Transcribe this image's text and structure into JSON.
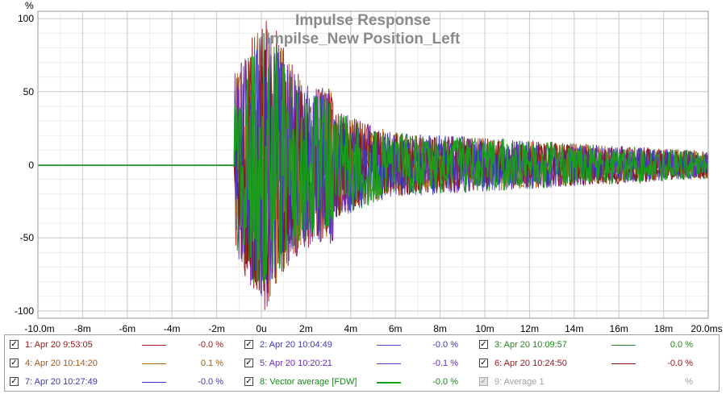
{
  "chart_data": {
    "type": "line",
    "title": "Impulse Response",
    "subtitle": "Impilse_New Position_Left",
    "y_unit_label": "%",
    "x_unit_label": "ms",
    "xlim": [
      -10,
      20
    ],
    "ylim": [
      -105,
      105
    ],
    "x_ticks": [
      -10,
      -8,
      -6,
      -4,
      -2,
      0,
      2,
      4,
      6,
      8,
      10,
      12,
      14,
      16,
      18,
      20
    ],
    "x_tick_labels": [
      "-10.0m",
      "-8m",
      "-6m",
      "-4m",
      "-2m",
      "0u",
      "2m",
      "4m",
      "6m",
      "8m",
      "10m",
      "12m",
      "14m",
      "16m",
      "18m",
      "20.0ms"
    ],
    "y_ticks": [
      100,
      50,
      0,
      -50,
      -100
    ],
    "y_tick_labels": [
      "100",
      "50",
      "0",
      "-50",
      "-100"
    ],
    "grid": true,
    "series": [
      {
        "legend": "1: Apr 20 9:53:05",
        "value": "-0.0 %",
        "color": "#a01818",
        "seed": 11,
        "peak": 100
      },
      {
        "legend": "2: Apr 20 10:04:49",
        "value": "-0.0 %",
        "color": "#5a46c8",
        "seed": 23,
        "peak": 96
      },
      {
        "legend": "3: Apr 20 10:09:57",
        "value": "0.0 %",
        "color": "#2a8a2a",
        "seed": 37,
        "peak": 92
      },
      {
        "legend": "4: Apr 20 10:14:20",
        "value": "0.1 %",
        "color": "#b06818",
        "seed": 41,
        "peak": 95
      },
      {
        "legend": "5: Apr 20 10:20:21",
        "value": "-0.1 %",
        "color": "#7a28c0",
        "seed": 53,
        "peak": 98
      },
      {
        "legend": "6: Apr 20 10:24:50",
        "value": "-0.0 %",
        "color": "#8a1010",
        "seed": 67,
        "peak": 90
      },
      {
        "legend": "7: Apr 20 10:27:49",
        "value": "-0.0 %",
        "color": "#3a3ac8",
        "seed": 71,
        "peak": 88
      },
      {
        "legend": "8: Vector average [FDW]",
        "value": "-0.0 %",
        "color": "#18a018",
        "seed": 89,
        "peak": 85,
        "thick": true
      },
      {
        "legend": "9: Average 1",
        "value": "%",
        "color": "#b0b0b0",
        "seed": 0,
        "peak": 0,
        "disabled": true
      }
    ]
  },
  "legend": {
    "items": [
      {
        "label": "1: Apr 20 9:53:05",
        "value": "-0.0 %",
        "color": "#a01818",
        "text_color": "#a01818",
        "checked": "✓"
      },
      {
        "label": "2: Apr 20 10:04:49",
        "value": "-0.0 %",
        "color": "#5a46c8",
        "text_color": "#3a3ab0",
        "checked": "✓"
      },
      {
        "label": "3: Apr 20 10:09:57",
        "value": "0.0 %",
        "color": "#2a8a2a",
        "text_color": "#1a8a1a",
        "checked": "✓"
      },
      {
        "label": "4: Apr 20 10:14:20",
        "value": "0.1 %",
        "color": "#b06818",
        "text_color": "#a05a10",
        "checked": "✓"
      },
      {
        "label": "5: Apr 20 10:20:21",
        "value": "-0.1 %",
        "color": "#7a28c0",
        "text_color": "#6a28b0",
        "checked": "✓"
      },
      {
        "label": "6: Apr 20 10:24:50",
        "value": "-0.0 %",
        "color": "#8a1010",
        "text_color": "#9a1414",
        "checked": "✓"
      },
      {
        "label": "7: Apr 20 10:27:49",
        "value": "-0.0 %",
        "color": "#3a3ac8",
        "text_color": "#3a3ab8",
        "checked": "✓"
      },
      {
        "label": "8: Vector average [FDW]",
        "value": "-0.0 %",
        "color": "#18a018",
        "text_color": "#1a8a1a",
        "checked": "✓"
      },
      {
        "label": "9: Average 1",
        "value": "%",
        "color": "",
        "text_color": "#a0a0a0",
        "checked": "✓",
        "disabled": true
      }
    ]
  }
}
